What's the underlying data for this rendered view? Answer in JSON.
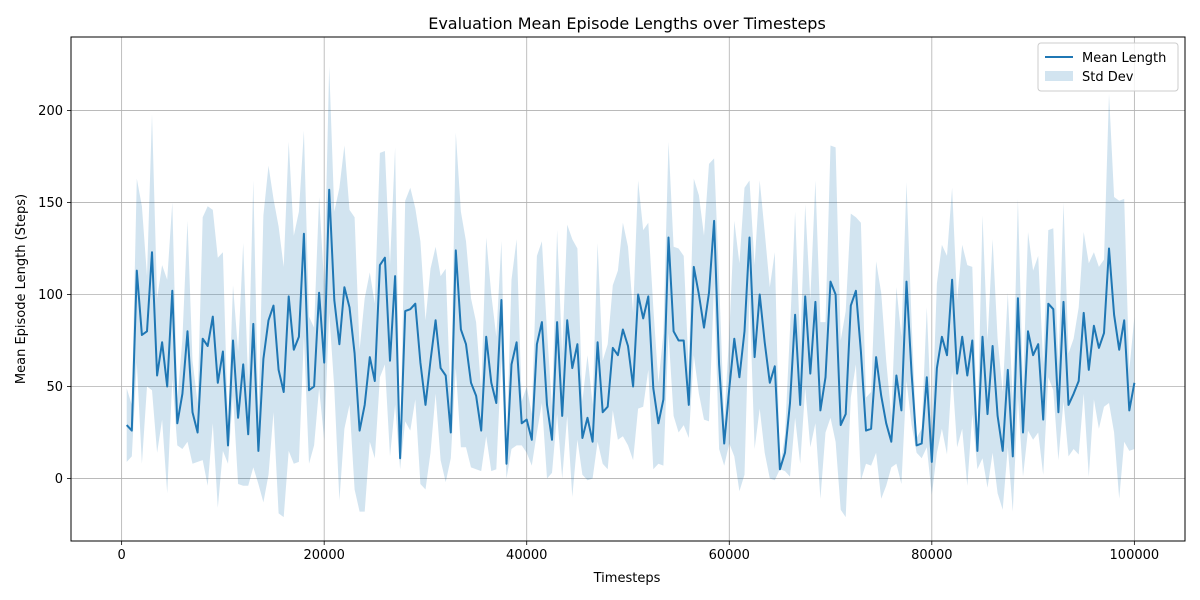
{
  "chart_data": {
    "type": "line",
    "title": "Evaluation Mean Episode Lengths over Timesteps",
    "xlabel": "Timesteps",
    "ylabel": "Mean Episode Length (Steps)",
    "xlim": [
      -5000,
      105000
    ],
    "ylim": [
      -34,
      240
    ],
    "xticks": [
      0,
      20000,
      40000,
      60000,
      80000,
      100000
    ],
    "yticks": [
      0,
      50,
      100,
      150,
      200
    ],
    "grid": true,
    "legend_position": "top-right",
    "colors": {
      "line": "#1f77b4",
      "band": "#1f77b4"
    },
    "series": [
      {
        "name": "Mean Length",
        "style": "line"
      },
      {
        "name": "Std Dev",
        "style": "band"
      }
    ],
    "x_start": 500,
    "x_step": 500,
    "mean": [
      29,
      26,
      113,
      78,
      80,
      123,
      56,
      74,
      50,
      102,
      30,
      46,
      80,
      36,
      25,
      76,
      72,
      88,
      52,
      69,
      18,
      75,
      33,
      62,
      24,
      84,
      15,
      65,
      86,
      94,
      59,
      47,
      99,
      70,
      77,
      133,
      48,
      50,
      101,
      63,
      157,
      97,
      73,
      104,
      93,
      68,
      26,
      40,
      66,
      53,
      116,
      120,
      64,
      110,
      11,
      91,
      92,
      95,
      63,
      40,
      64,
      86,
      60,
      56,
      25,
      124,
      81,
      73,
      52,
      45,
      26,
      77,
      52,
      41,
      97,
      8,
      62,
      74,
      30,
      32,
      21,
      73,
      85,
      40,
      21,
      85,
      34,
      86,
      60,
      73,
      22,
      33,
      20,
      74,
      36,
      39,
      71,
      67,
      81,
      72,
      50,
      100,
      87,
      99,
      49,
      30,
      43,
      131,
      80,
      75,
      75,
      40,
      115,
      100,
      82,
      101,
      140,
      62,
      19,
      49,
      76,
      55,
      80,
      131,
      66,
      100,
      74,
      52,
      61,
      5,
      14,
      41,
      89,
      40,
      99,
      57,
      96,
      37,
      55,
      107,
      100,
      29,
      35,
      94,
      102,
      69,
      26,
      27,
      66,
      45,
      30,
      20,
      56,
      37,
      107,
      57,
      18,
      19,
      55,
      9,
      60,
      77,
      67,
      108,
      57,
      77,
      56,
      75,
      15,
      77,
      35,
      72,
      34,
      15,
      59,
      12,
      98,
      25,
      80,
      67,
      73,
      32,
      95,
      92,
      36,
      96,
      40,
      46,
      53,
      90,
      59,
      83,
      71,
      79,
      125,
      89,
      70,
      86,
      37,
      52
    ],
    "std_dev": [
      20,
      14,
      50,
      70,
      30,
      75,
      42,
      42,
      58,
      48,
      12,
      30,
      60,
      28,
      16,
      66,
      76,
      58,
      68,
      54,
      10,
      30,
      36,
      66,
      28,
      78,
      18,
      78,
      84,
      58,
      78,
      68,
      84,
      62,
      68,
      56,
      40,
      32,
      52,
      42,
      67,
      48,
      85,
      77,
      53,
      74,
      44,
      58,
      46,
      42,
      61,
      58,
      52,
      70,
      6,
      60,
      66,
      52,
      66,
      46,
      50,
      40,
      50,
      58,
      14,
      64,
      64,
      56,
      46,
      40,
      22,
      54,
      48,
      36,
      32,
      8,
      46,
      56,
      12,
      18,
      14,
      48,
      44,
      40,
      18,
      50,
      34,
      52,
      70,
      52,
      20,
      34,
      20,
      54,
      28,
      34,
      34,
      46,
      58,
      54,
      40,
      62,
      48,
      40,
      44,
      22,
      36,
      52,
      46,
      50,
      46,
      18,
      48,
      54,
      50,
      70,
      34,
      46,
      12,
      30,
      64,
      62,
      78,
      31,
      50,
      62,
      60,
      52,
      62,
      0,
      10,
      40,
      56,
      32,
      50,
      40,
      66,
      48,
      30,
      74,
      80,
      46,
      56,
      50,
      40,
      70,
      18,
      20,
      52,
      56,
      34,
      14,
      48,
      40,
      54,
      28,
      4,
      8,
      38,
      18,
      46,
      50,
      54,
      50,
      40,
      50,
      60,
      40,
      10,
      66,
      40,
      58,
      42,
      32,
      42,
      30,
      54,
      24,
      54,
      46,
      48,
      30,
      40,
      44,
      26,
      54,
      28,
      30,
      40,
      44,
      58,
      40,
      44,
      40,
      84,
      64,
      81,
      66,
      22,
      36
    ]
  }
}
